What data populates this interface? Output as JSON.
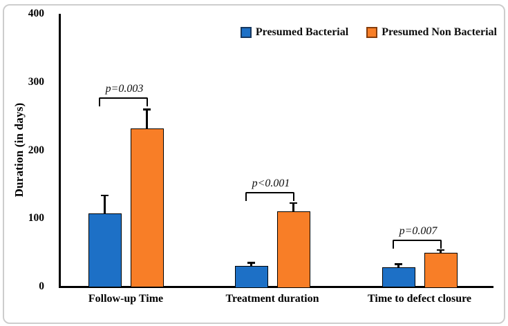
{
  "figure": {
    "background": "#ffffff",
    "border_color": "#cdcdcd"
  },
  "chart_data": {
    "type": "bar",
    "title": "",
    "xlabel": "",
    "ylabel": "Duration (in days)",
    "ylim": [
      0,
      400
    ],
    "yticks": [
      "0",
      "100",
      "200",
      "300",
      "400"
    ],
    "grid": false,
    "axis_color": "#000000",
    "legend_position": "top-right",
    "categories": [
      "Follow-up Time",
      "Treatment duration",
      "Time to defect closure"
    ],
    "series": [
      {
        "name": "Presumed Bacterial",
        "color": "#1d70c6",
        "bar_border_color": "#000000",
        "legend_swatch_border": "#17375e",
        "values": [
          107,
          30,
          28
        ],
        "errors_plus": [
          27,
          5,
          5
        ]
      },
      {
        "name": "Presumed Non Bacterial",
        "color": "#f87e27",
        "bar_border_color": "#000000",
        "legend_swatch_border": "#843c0c",
        "values": [
          232,
          110,
          50
        ],
        "errors_plus": [
          28,
          13,
          4
        ]
      }
    ],
    "annotations": [
      {
        "text": "p=0.003",
        "category_index": 0,
        "bracket_y_value": 277
      },
      {
        "text": "p<0.001",
        "category_index": 1,
        "bracket_y_value": 139
      },
      {
        "text": "p=0.007",
        "category_index": 2,
        "bracket_y_value": 69
      }
    ]
  }
}
